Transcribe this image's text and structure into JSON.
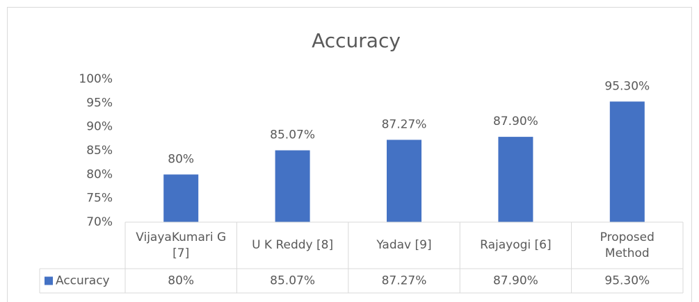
{
  "chart_data": {
    "type": "bar",
    "title": "Accuracy",
    "categories": [
      "VijayaKumari G [7]",
      "U K Reddy [8]",
      "Yadav [9]",
      "Rajayogi [6]",
      "Proposed Method"
    ],
    "series": [
      {
        "name": "Accuracy",
        "color": "#4472c4",
        "values": [
          80,
          85.07,
          87.27,
          87.9,
          95.3
        ],
        "value_labels": [
          "80%",
          "85.07%",
          "87.27%",
          "87.90%",
          "95.30%"
        ]
      }
    ],
    "ylim": [
      70,
      100
    ],
    "yticks": [
      {
        "value": 70,
        "label": "70%"
      },
      {
        "value": 75,
        "label": "75%"
      },
      {
        "value": 80,
        "label": "80%"
      },
      {
        "value": 85,
        "label": "85%"
      },
      {
        "value": 90,
        "label": "90%"
      },
      {
        "value": 95,
        "label": "95%"
      },
      {
        "value": 100,
        "label": "100%"
      }
    ],
    "grid": false,
    "data_table": true
  }
}
